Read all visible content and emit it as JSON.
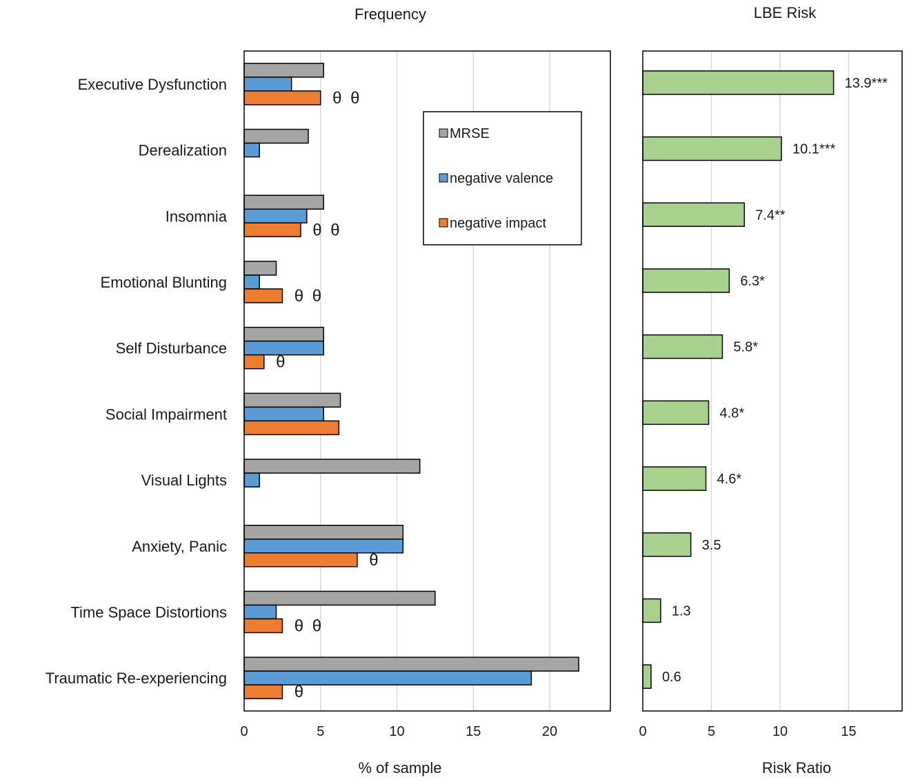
{
  "chart_data": [
    {
      "type": "bar",
      "orientation": "horizontal",
      "title": "Frequency",
      "xlabel": "% of sample",
      "ylabel": "",
      "xlim": [
        0,
        24
      ],
      "xticks": [
        0,
        5,
        10,
        15,
        20
      ],
      "grid": true,
      "legend_position": "top-right",
      "categories": [
        "Executive Dysfunction",
        "Derealization",
        "Insomnia",
        "Emotional Blunting",
        "Self Disturbance",
        "Social Impairment",
        "Visual Lights",
        "Anxiety, Panic",
        "Time Space Distortions",
        "Traumatic Re-experiencing"
      ],
      "series": [
        {
          "name": "MRSE",
          "color": "#a5a5a5",
          "values": [
            5.2,
            4.2,
            5.2,
            2.1,
            5.2,
            6.3,
            11.5,
            10.4,
            12.5,
            21.9
          ]
        },
        {
          "name": "negative valence",
          "color": "#5b9bd5",
          "values": [
            3.1,
            1.0,
            4.1,
            1.0,
            5.2,
            5.2,
            1.0,
            10.4,
            2.1,
            18.8
          ]
        },
        {
          "name": "negative impact",
          "color": "#ed7d31",
          "values": [
            5.0,
            null,
            3.7,
            2.5,
            1.3,
            6.2,
            null,
            7.4,
            2.5,
            2.5
          ]
        }
      ],
      "annotations": {
        "symbol": "θ",
        "counts": [
          2,
          0,
          2,
          2,
          1,
          0,
          0,
          1,
          2,
          1
        ]
      }
    },
    {
      "type": "bar",
      "orientation": "horizontal",
      "title": "LBE Risk",
      "xlabel": "Risk Ratio",
      "ylabel": "",
      "xlim": [
        0,
        19
      ],
      "xticks": [
        0,
        5,
        10,
        15
      ],
      "grid": true,
      "color": "#a9d18e",
      "categories": [
        "Executive Dysfunction",
        "Derealization",
        "Insomnia",
        "Emotional Blunting",
        "Self Disturbance",
        "Social Impairment",
        "Visual Lights",
        "Anxiety, Panic",
        "Time Space Distortions",
        "Traumatic Re-experiencing"
      ],
      "values": [
        13.9,
        10.1,
        7.4,
        6.3,
        5.8,
        4.8,
        4.6,
        3.5,
        1.3,
        0.6
      ],
      "data_labels": [
        "13.9***",
        "10.1***",
        "7.4**",
        "6.3*",
        "5.8*",
        "4.8*",
        "4.6*",
        "3.5",
        "1.3",
        "0.6"
      ]
    }
  ]
}
